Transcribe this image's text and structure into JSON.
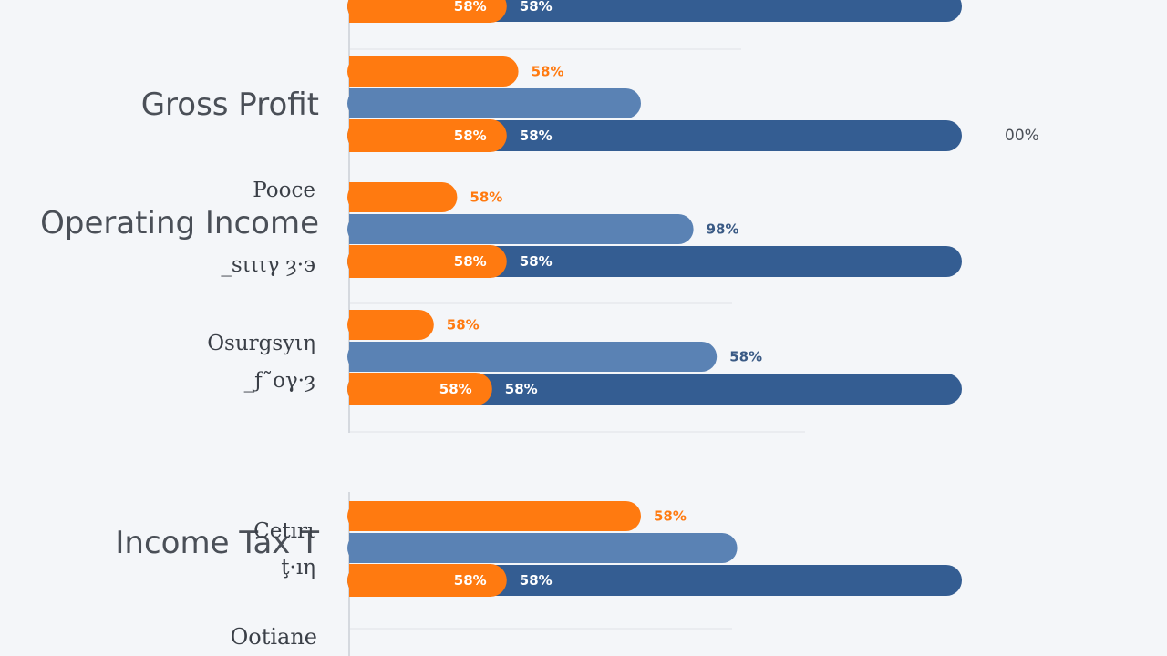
{
  "colors": {
    "orange": "#ff7a10",
    "steel": "#5a82b4",
    "navy": "#345d92",
    "text": "#4a4f57",
    "axis": "#d5d9df",
    "grid": "#e6e9ee",
    "background": "#f4f6f9",
    "label_on_orange": "#ffffff",
    "label_on_navy": "#ffffff",
    "label_outside": "#ff7a10",
    "label_outside_navy": "#3a5a85"
  },
  "chart_data": {
    "type": "bar",
    "orientation": "horizontal",
    "categories": [
      "",
      "Gross Profit",
      "Operating Income",
      "",
      "Income Tax T"
    ],
    "side_labels": [
      [],
      [],
      [
        "Pooce",
        "_sιιιγ ȝ·϶"
      ],
      [
        "Osurgsyιη",
        "_ƒ˜ογ·ȝ"
      ],
      [
        "Cetırι",
        "ţ·ıη"
      ]
    ],
    "bottom_label": "Ootiane",
    "series": [
      {
        "color": "orange",
        "values": [
          null,
          58,
          37,
          29,
          100
        ],
        "labels": [
          "",
          "58%",
          "58%",
          "58%",
          "58%"
        ]
      },
      {
        "color": "steel",
        "values": [
          null,
          100,
          118,
          126,
          133
        ],
        "labels": [
          "",
          "",
          "98%",
          "58%",
          ""
        ]
      },
      {
        "color": "navy",
        "values": [
          210,
          210,
          210,
          210,
          210
        ],
        "labels": [
          "58%",
          "58%",
          "58%",
          "58%",
          "58%"
        ]
      },
      {
        "color": "orange",
        "values": [
          54,
          54,
          54,
          49,
          54
        ],
        "labels": [
          "58%",
          "58%",
          "58%",
          "58%",
          "58%"
        ]
      }
    ],
    "end_labels": [
      "",
      "00%",
      "",
      "",
      ""
    ],
    "xlim": [
      0,
      220
    ],
    "grid": true,
    "legend": "none"
  }
}
